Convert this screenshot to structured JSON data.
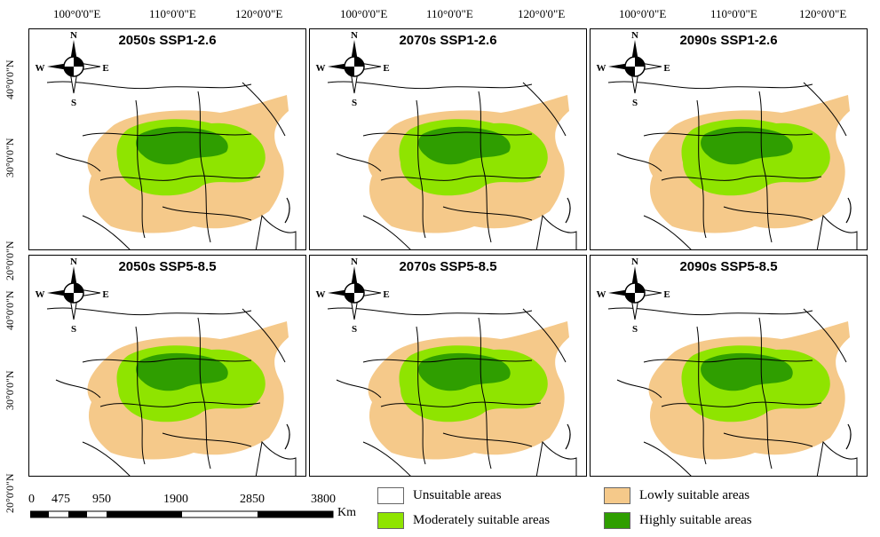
{
  "longitude_labels": [
    "100°0'0\"E",
    "110°0'0\"E",
    "120°0'0\"E"
  ],
  "latitude_labels": [
    "40°0'0\"N",
    "30°0'0\"N",
    "20°0'0\"N"
  ],
  "panels": [
    {
      "title": "2050s SSP1-2.6"
    },
    {
      "title": "2070s SSP1-2.6"
    },
    {
      "title": "2090s SSP1-2.6"
    },
    {
      "title": "2050s SSP5-8.5"
    },
    {
      "title": "2070s SSP5-8.5"
    },
    {
      "title": "2090s SSP5-8.5"
    }
  ],
  "compass": {
    "n": "N",
    "s": "S",
    "e": "E",
    "w": "W"
  },
  "scale_bar": {
    "ticks": [
      "0",
      "475",
      "950",
      "1900",
      "2850",
      "3800"
    ],
    "unit": "Km"
  },
  "legend": [
    {
      "label": "Unsuitable areas",
      "color": "#ffffff"
    },
    {
      "label": "Lowly suitable areas",
      "color": "#f5c98a"
    },
    {
      "label": "Moderately suitable areas",
      "color": "#8fe400"
    },
    {
      "label": "Highly suitable areas",
      "color": "#2f9e00"
    }
  ],
  "colors": {
    "low": "#f5c98a",
    "moderate": "#8fe400",
    "high": "#2f9e00",
    "boundary": "#000000"
  }
}
